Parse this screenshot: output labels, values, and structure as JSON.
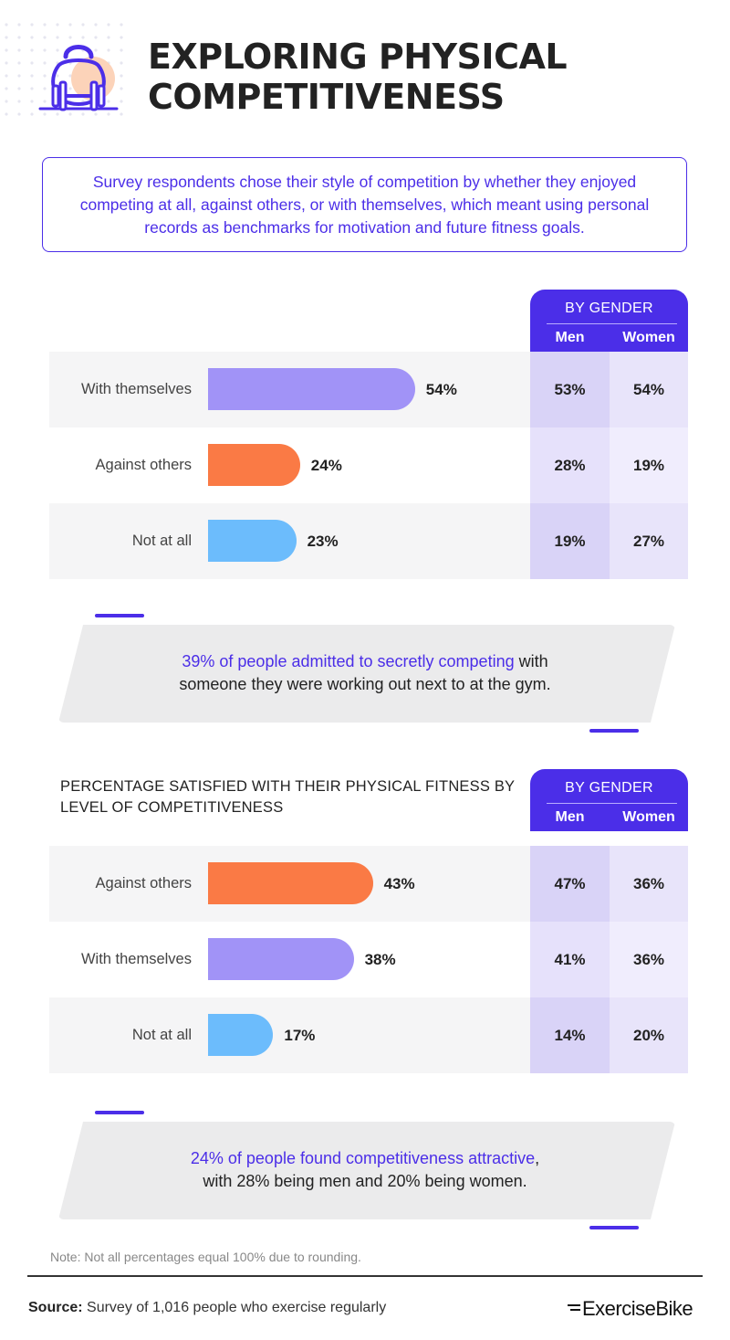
{
  "header": {
    "title_line1": "EXPLORING PHYSICAL",
    "title_line2": "COMPETITIVENESS",
    "icon": "kettlebell-dumbbell-icon"
  },
  "intro": "Survey respondents chose their style of competition by whether they enjoyed competing at all, against others, or with themselves, which meant using personal records as benchmarks for motivation and future fitness goals.",
  "colors": {
    "accent": "#4b2ee8",
    "purple_bar": "#a193f7",
    "orange_bar": "#fa7a45",
    "blue_bar": "#6cbcfc"
  },
  "chart_data": [
    {
      "type": "bar",
      "title": "",
      "categories": [
        "With themselves",
        "Against others",
        "Not at all"
      ],
      "values": [
        54,
        24,
        23
      ],
      "labels": [
        "54%",
        "24%",
        "23%"
      ],
      "gender_header": "BY GENDER",
      "gender_columns": [
        "Men",
        "Women"
      ],
      "men": [
        "53%",
        "28%",
        "19%"
      ],
      "women": [
        "54%",
        "19%",
        "27%"
      ]
    },
    {
      "type": "bar",
      "title": "PERCENTAGE SATISFIED WITH THEIR PHYSICAL FITNESS BY LEVEL OF COMPETITIVENESS",
      "categories": [
        "Against others",
        "With themselves",
        "Not at all"
      ],
      "values": [
        43,
        38,
        17
      ],
      "labels": [
        "43%",
        "38%",
        "17%"
      ],
      "gender_header": "BY GENDER",
      "gender_columns": [
        "Men",
        "Women"
      ],
      "men": [
        "47%",
        "41%",
        "14%"
      ],
      "women": [
        "36%",
        "36%",
        "20%"
      ]
    }
  ],
  "callouts": [
    {
      "highlight": "39% of people admitted to secretly competing",
      "rest1": " with",
      "line2": "someone they were working out next to at the gym."
    },
    {
      "highlight": "24% of people found competitiveness attractive",
      "rest1": ",",
      "line2": "with 28% being men and 20% being women."
    }
  ],
  "note": "Note: Not all percentages equal 100% due to rounding.",
  "footer": {
    "source_label": "Source:",
    "source_text": " Survey of 1,016 people who exercise regularly",
    "brand": "ExerciseBike"
  }
}
